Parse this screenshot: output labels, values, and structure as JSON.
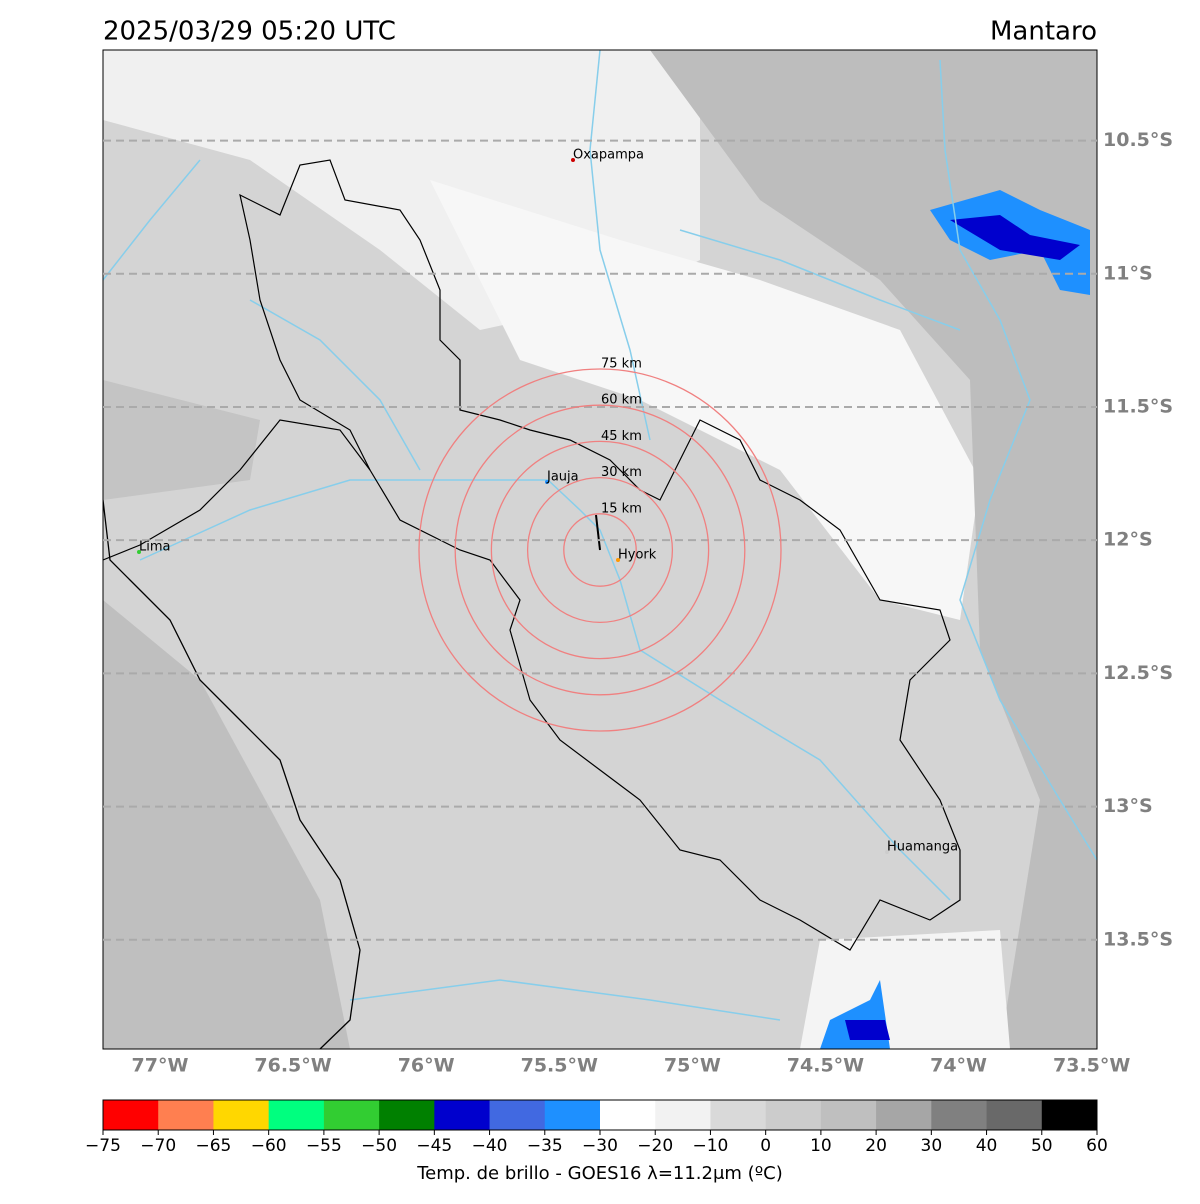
{
  "header": {
    "title": "2025/03/29 05:20 UTC",
    "region": "Mantaro"
  },
  "map": {
    "xlim": [
      -77.214,
      -73.48
    ],
    "ylim": [
      -13.91,
      -10.16
    ],
    "xticks": [
      {
        "value": -77,
        "label": "77°W"
      },
      {
        "value": -76.5,
        "label": "76.5°W"
      },
      {
        "value": -76,
        "label": "76°W"
      },
      {
        "value": -75.5,
        "label": "75.5°W"
      },
      {
        "value": -75,
        "label": "75°W"
      },
      {
        "value": -74.5,
        "label": "74.5°W"
      },
      {
        "value": -74,
        "label": "74°W"
      },
      {
        "value": -73.5,
        "label": "73.5°W"
      }
    ],
    "yticks": [
      {
        "value": -10.5,
        "label": "10.5°S"
      },
      {
        "value": -11,
        "label": "11°S"
      },
      {
        "value": -11.5,
        "label": "11.5°S"
      },
      {
        "value": -12,
        "label": "12°S"
      },
      {
        "value": -12.5,
        "label": "12.5°S"
      },
      {
        "value": -13,
        "label": "13°S"
      },
      {
        "value": -13.5,
        "label": "13.5°S"
      }
    ],
    "cities": [
      "Oxapampa",
      "Jauja",
      "Hyork",
      "Lima",
      "Huamanga"
    ],
    "rings": [
      "15 km",
      "30 km",
      "45 km",
      "60 km",
      "75 km"
    ]
  },
  "colorbar": {
    "bounds": [
      {
        "value": -75,
        "label": "−75"
      },
      {
        "value": -70,
        "label": "−70"
      },
      {
        "value": -65,
        "label": "−65"
      },
      {
        "value": -60,
        "label": "−60"
      },
      {
        "value": -55,
        "label": "−55"
      },
      {
        "value": -50,
        "label": "−50"
      },
      {
        "value": -45,
        "label": "−45"
      },
      {
        "value": -40,
        "label": "−40"
      },
      {
        "value": -35,
        "label": "−35"
      },
      {
        "value": -30,
        "label": "−30"
      },
      {
        "value": -20,
        "label": "−20"
      },
      {
        "value": -10,
        "label": "−10"
      },
      0,
      10,
      20,
      30,
      40,
      50,
      60
    ],
    "colors": [
      "#ff0000",
      "#ff7f50",
      "#ffd700",
      "#00ff7f",
      "#32cd32",
      "#008000",
      "#0000cd",
      "#4169e1",
      "#1e90ff",
      "#ffffff",
      "#f2f2f2",
      "#d9d9d9",
      "#cccccc",
      "#bfbfbf",
      "#a6a6a6",
      "#808080",
      "#696969",
      "#000000"
    ],
    "label": "Temp. de brillo - GOES16 λ=11.2μm (ºC)"
  }
}
